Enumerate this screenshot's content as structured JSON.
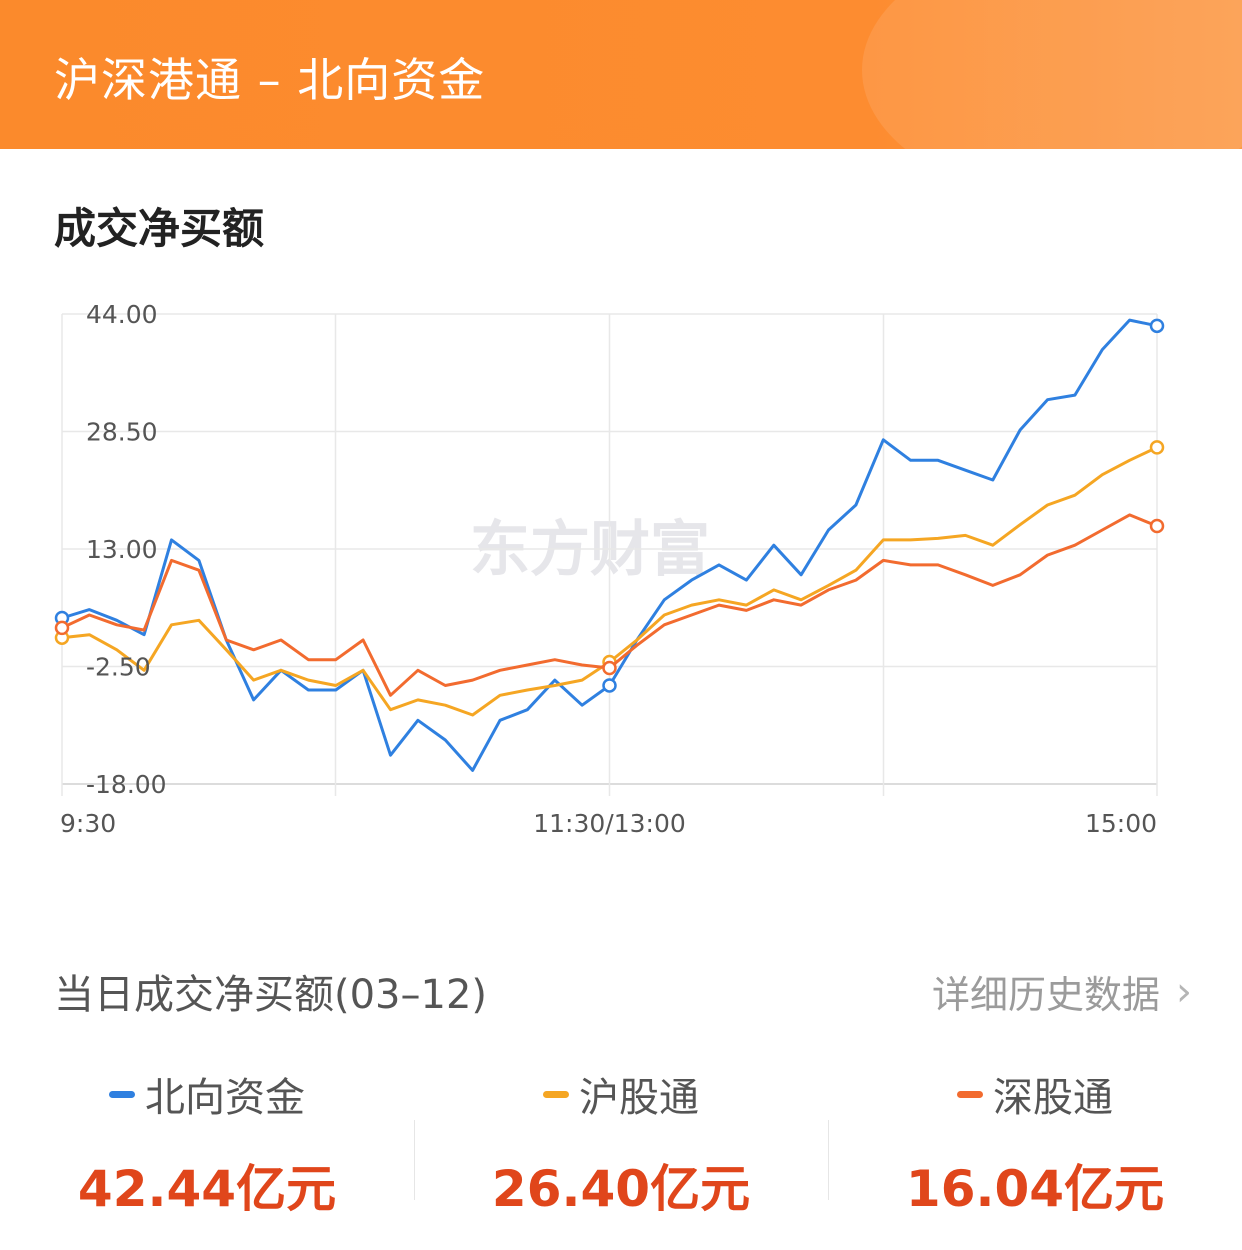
{
  "header": {
    "title": "沪深港通 – 北向资金"
  },
  "section_title": "成交净买额",
  "watermark": "东方财富",
  "summary": {
    "title": "当日成交净买额(03–12)",
    "history_link": "详细历史数据",
    "items": [
      {
        "label": "北向资金",
        "value": "42.44亿元",
        "color": "#2f80e0"
      },
      {
        "label": "沪股通",
        "value": "26.40亿元",
        "color": "#f5a623"
      },
      {
        "label": "深股通",
        "value": "16.04亿元",
        "color": "#f26b2f"
      }
    ]
  },
  "chart_data": {
    "type": "line",
    "ylim": [
      -18,
      44
    ],
    "yticks": [
      "44.00",
      "28.50",
      "13.00",
      "-2.50",
      "-18.00"
    ],
    "xticks": [
      "9:30",
      "11:30/13:00",
      "15:00"
    ],
    "grid": true,
    "x": [
      "9:30",
      "9:36",
      "9:42",
      "9:48",
      "9:54",
      "10:00",
      "10:06",
      "10:12",
      "10:18",
      "10:24",
      "10:30",
      "10:36",
      "10:42",
      "10:48",
      "10:54",
      "11:00",
      "11:06",
      "11:12",
      "11:18",
      "11:24",
      "11:30/13:00",
      "13:06",
      "13:12",
      "13:18",
      "13:24",
      "13:30",
      "13:36",
      "13:42",
      "13:48",
      "13:54",
      "14:00",
      "14:06",
      "14:12",
      "14:18",
      "14:24",
      "14:30",
      "14:36",
      "14:42",
      "14:48",
      "14:54",
      "15:00"
    ],
    "series": [
      {
        "name": "北向资金",
        "color": "#2f80e0",
        "values": [
          3.9,
          5.0,
          3.6,
          1.7,
          14.2,
          11.5,
          1.0,
          -6.9,
          -3.0,
          -5.6,
          -5.6,
          -3.0,
          -14.2,
          -9.6,
          -12.2,
          -16.2,
          -9.6,
          -8.2,
          -4.3,
          -7.6,
          -5.0,
          1.0,
          6.3,
          8.9,
          10.9,
          8.9,
          13.5,
          9.6,
          15.5,
          18.8,
          27.4,
          24.7,
          24.7,
          23.4,
          22.1,
          28.7,
          32.7,
          33.3,
          39.3,
          43.2,
          42.44
        ]
      },
      {
        "name": "沪股通",
        "color": "#f5a623",
        "values": [
          1.3,
          1.7,
          -0.3,
          -3.0,
          3.0,
          3.6,
          -0.3,
          -4.3,
          -3.0,
          -4.3,
          -5.0,
          -3.0,
          -8.2,
          -6.9,
          -7.6,
          -8.9,
          -6.3,
          -5.6,
          -5.0,
          -4.3,
          -1.9,
          1.0,
          4.3,
          5.6,
          6.3,
          5.6,
          7.6,
          6.3,
          8.2,
          10.2,
          14.2,
          14.2,
          14.4,
          14.8,
          13.5,
          16.2,
          18.8,
          20.1,
          22.8,
          24.7,
          26.4
        ]
      },
      {
        "name": "深股通",
        "color": "#f26b2f",
        "values": [
          2.6,
          4.3,
          3.0,
          2.3,
          11.5,
          10.2,
          1.0,
          -0.3,
          1.0,
          -1.6,
          -1.6,
          1.0,
          -6.3,
          -3.0,
          -5.0,
          -4.3,
          -3.0,
          -2.3,
          -1.6,
          -2.3,
          -2.7,
          0.3,
          3.0,
          4.3,
          5.6,
          4.9,
          6.3,
          5.6,
          7.6,
          8.9,
          11.5,
          10.9,
          10.9,
          9.6,
          8.2,
          9.6,
          12.2,
          13.5,
          15.5,
          17.5,
          16.04
        ]
      }
    ]
  }
}
